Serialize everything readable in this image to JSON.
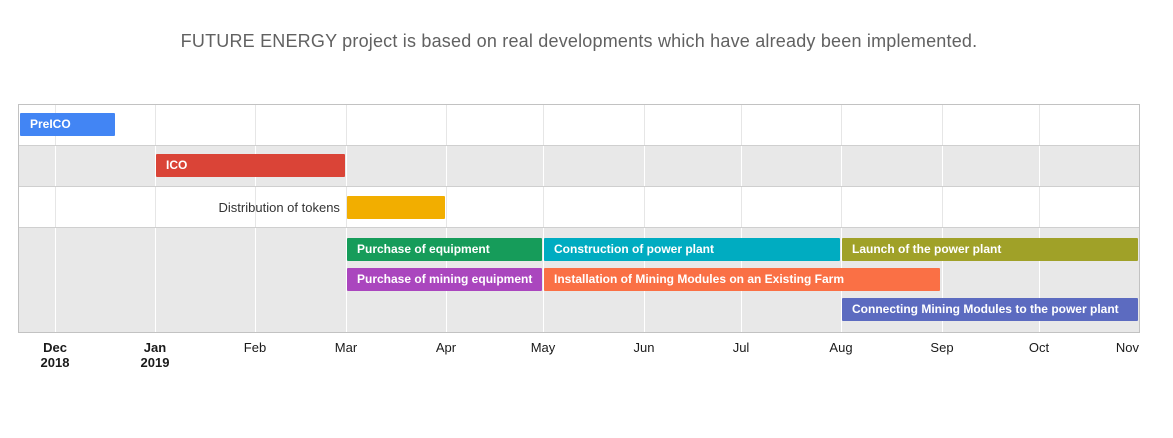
{
  "title": "FUTURE ENERGY project is based on real developments which have already been implemented.",
  "chart_data": {
    "type": "gantt-timeline",
    "timeline": {
      "start": "2018-11-20",
      "end": "2019-11-01"
    },
    "axis": {
      "ticks": [
        {
          "label": "Dec",
          "year": "2018",
          "date": "2018-12-01",
          "bold": true
        },
        {
          "label": "Jan",
          "year": "2019",
          "date": "2019-01-01",
          "bold": true
        },
        {
          "label": "Feb",
          "date": "2019-02-01"
        },
        {
          "label": "Mar",
          "date": "2019-03-01"
        },
        {
          "label": "Apr",
          "date": "2019-04-01"
        },
        {
          "label": "May",
          "date": "2019-05-01"
        },
        {
          "label": "Jun",
          "date": "2019-06-01"
        },
        {
          "label": "Jul",
          "date": "2019-07-01"
        },
        {
          "label": "Aug",
          "date": "2019-08-01"
        },
        {
          "label": "Sep",
          "date": "2019-09-01"
        },
        {
          "label": "Oct",
          "date": "2019-10-01"
        },
        {
          "label": "Nov",
          "date": "2019-11-01",
          "clamp": true
        }
      ]
    },
    "tasks": [
      {
        "name": "PreICO",
        "start": "2018-11-20",
        "end": "2018-12-20",
        "color": "#4285f4",
        "lane": 0
      },
      {
        "name": "ICO",
        "start": "2019-01-01",
        "end": "2019-03-01",
        "color": "#da4437",
        "lane": 1
      },
      {
        "name": "Distribution of tokens",
        "start": "2019-03-01",
        "end": "2019-04-01",
        "color": "#f2ae00",
        "lane": 2,
        "label_outside": true
      },
      {
        "name": "Purchase of equipment",
        "start": "2019-03-01",
        "end": "2019-05-01",
        "color": "#169c5a",
        "lane": 3
      },
      {
        "name": "Construction of power plant",
        "start": "2019-05-01",
        "end": "2019-08-01",
        "color": "#00acc1",
        "lane": 3
      },
      {
        "name": "Launch of the power plant",
        "start": "2019-08-01",
        "end": "2019-11-01",
        "color": "#a0a128",
        "lane": 3
      },
      {
        "name": "Purchase of mining equipment",
        "start": "2019-03-01",
        "end": "2019-05-01",
        "color": "#aa46be",
        "lane": 4
      },
      {
        "name": "Installation of Mining Modules on an Existing Farm",
        "start": "2019-05-01",
        "end": "2019-09-01",
        "color": "#fa7045",
        "lane": 4
      },
      {
        "name": "Connecting Mining Modules to the power plant",
        "start": "2019-08-01",
        "end": "2019-11-01",
        "color": "#5c6bc0",
        "lane": 5
      }
    ],
    "style": {
      "stripe_row": "#e8e8e8",
      "plain_row": "#ffffff",
      "gridline_on_stripe": "#ffffff",
      "gridline_on_plain": "#e6e6e6",
      "separator": "#cfcfcf",
      "border": "#c2c2c2",
      "bar_label_color": "#ffffff",
      "outside_label_color": "#333333",
      "axis_label_color": "#1a1a1a",
      "title_color": "#616161"
    }
  }
}
